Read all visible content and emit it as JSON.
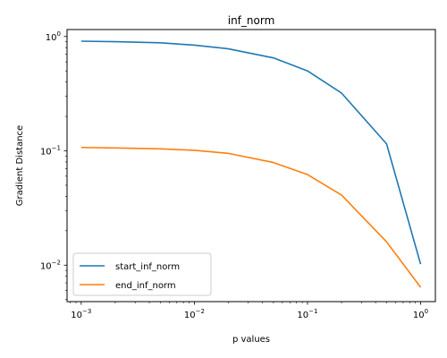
{
  "chart_data": {
    "type": "line",
    "title": "inf_norm",
    "xlabel": "p values",
    "ylabel": "Gradient Distance",
    "xscale": "log",
    "yscale": "log",
    "xlim": [
      0.00075,
      1.35
    ],
    "ylim": [
      0.0048,
      1.15
    ],
    "x_ticks": [
      {
        "value": 0.001,
        "base": "10",
        "exp": "−3"
      },
      {
        "value": 0.01,
        "base": "10",
        "exp": "−2"
      },
      {
        "value": 0.1,
        "base": "10",
        "exp": "−1"
      },
      {
        "value": 1,
        "base": "10",
        "exp": "0"
      }
    ],
    "y_ticks": [
      {
        "value": 0.01,
        "base": "10",
        "exp": "−2"
      },
      {
        "value": 0.1,
        "base": "10",
        "exp": "−1"
      },
      {
        "value": 1,
        "base": "10",
        "exp": "0"
      }
    ],
    "grid": false,
    "legend_position": "lower-left",
    "x": [
      0.001,
      0.002,
      0.005,
      0.01,
      0.02,
      0.05,
      0.1,
      0.2,
      0.5,
      1.0
    ],
    "series": [
      {
        "name": "start_inf_norm",
        "color": "#1f77b4",
        "values": [
          0.91,
          0.9,
          0.88,
          0.84,
          0.78,
          0.65,
          0.5,
          0.32,
          0.115,
          0.0102
        ]
      },
      {
        "name": "end_inf_norm",
        "color": "#ff7f0e",
        "values": [
          0.107,
          0.106,
          0.104,
          0.101,
          0.095,
          0.079,
          0.062,
          0.041,
          0.016,
          0.0064
        ]
      }
    ]
  }
}
